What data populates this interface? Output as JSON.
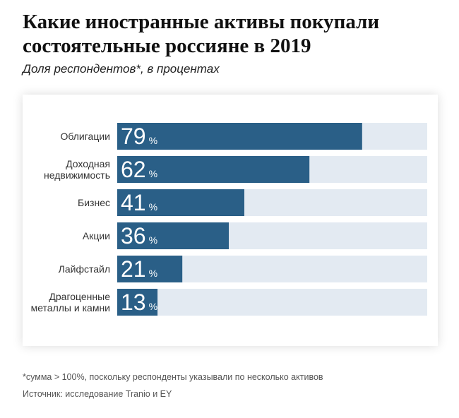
{
  "header": {
    "title": "Какие иностранные активы покупали состоятельные россияне в 2019",
    "subtitle": "Доля респондентов*,  в процентах"
  },
  "footer": {
    "footnote": "*сумма > 100%, поскольку респонденты указывали по несколько активов",
    "source": "Источник:  исследование Tranio и EY"
  },
  "colors": {
    "bar": "#2a5f87",
    "track": "#e3eaf2",
    "label": "#333333",
    "value": "#ffffff"
  },
  "chart_data": {
    "type": "bar",
    "orientation": "horizontal",
    "categories": [
      [
        "Облигации"
      ],
      [
        "Доходная",
        "недвижимость"
      ],
      [
        "Бизнес"
      ],
      [
        "Акции"
      ],
      [
        "Лайфстайл"
      ],
      [
        "Драгоценные",
        "металлы и камни"
      ]
    ],
    "values": [
      79,
      62,
      41,
      36,
      21,
      13
    ],
    "unit": "%",
    "xlim": [
      0,
      100
    ],
    "grid": false,
    "legend": "none"
  }
}
